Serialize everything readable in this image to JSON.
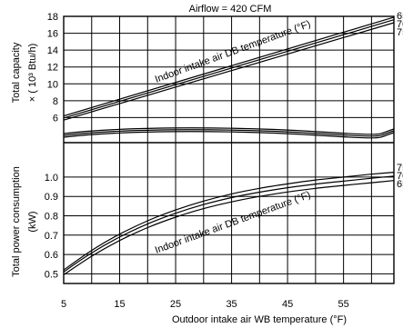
{
  "chart_data": {
    "type": "line",
    "title": "Airflow = 420 CFM",
    "xlabel": "Outdoor intake air WB temperature (°F)",
    "x_ticks": [
      "5",
      "15",
      "25",
      "35",
      "45",
      "55"
    ],
    "xlim": [
      5,
      64
    ],
    "panels": [
      {
        "name": "capacity",
        "ylabel_line1": "Total capacity",
        "ylabel_line2": "× ( 10³ Btu/h)",
        "ylim": [
          4,
          18
        ],
        "y_ticks": [
          "18",
          "16",
          "14",
          "12",
          "10",
          "8",
          "6"
        ],
        "annotation": "Indoor intake air DB temperature (°F)",
        "series": [
          {
            "name": "65",
            "x": [
              5,
              64
            ],
            "y": [
              6.2,
              17.9
            ]
          },
          {
            "name": "70",
            "x": [
              5,
              64
            ],
            "y": [
              5.95,
              17.6
            ]
          },
          {
            "name": "75",
            "x": [
              5,
              64
            ],
            "y": [
              5.7,
              17.25
            ]
          }
        ]
      },
      {
        "name": "power",
        "ylabel_line1": "Total power consumption",
        "ylabel_line2": "(kW)",
        "ylim": [
          0.45,
          1.07
        ],
        "y_ticks": [
          "1.0",
          "0.9",
          "0.8",
          "0.7",
          "0.6",
          "0.5"
        ],
        "annotation": "Indoor intake air DB temperature (°F)",
        "series": [
          {
            "name": "75",
            "x": [
              5,
              10,
              15,
              20,
              25,
              30,
              35,
              40,
              45,
              50,
              55,
              60,
              64
            ],
            "y": [
              0.52,
              0.621,
              0.705,
              0.774,
              0.83,
              0.876,
              0.913,
              0.942,
              0.965,
              0.985,
              1.0,
              1.015,
              1.025
            ]
          },
          {
            "name": "70",
            "x": [
              5,
              10,
              15,
              20,
              25,
              30,
              35,
              40,
              45,
              50,
              55,
              60,
              64
            ],
            "y": [
              0.51,
              0.608,
              0.69,
              0.758,
              0.813,
              0.858,
              0.894,
              0.922,
              0.945,
              0.964,
              0.979,
              0.994,
              1.005
            ]
          },
          {
            "name": "65",
            "x": [
              5,
              10,
              15,
              20,
              25,
              30,
              35,
              40,
              45,
              50,
              55,
              60,
              64
            ],
            "y": [
              0.495,
              0.591,
              0.672,
              0.739,
              0.793,
              0.837,
              0.872,
              0.9,
              0.923,
              0.942,
              0.957,
              0.971,
              0.982
            ]
          }
        ]
      }
    ]
  }
}
